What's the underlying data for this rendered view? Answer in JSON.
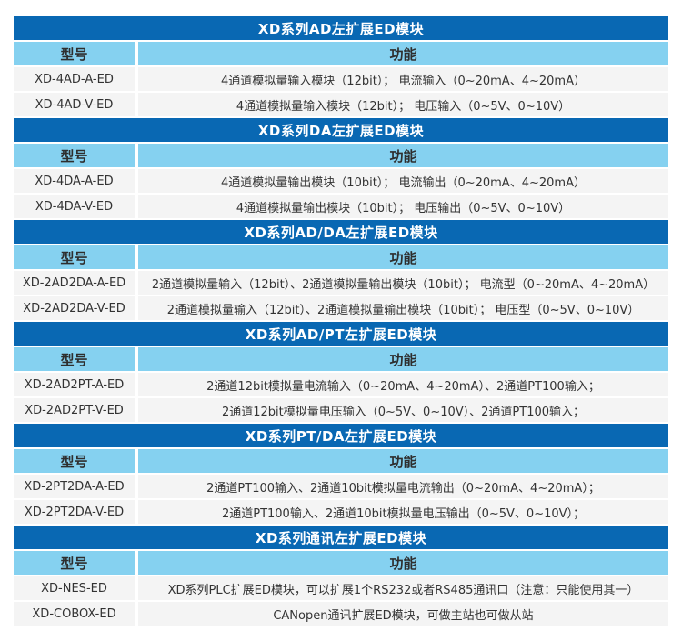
{
  "colors": {
    "dark_blue": "#0968b3",
    "light_blue": "#85d1f0",
    "row_bg": "#f4f4f4",
    "title_text": "#ffffff",
    "body_text": "#333333"
  },
  "table": {
    "col_model": "型号",
    "col_function": "功能",
    "sections": [
      {
        "title": "XD系列AD左扩展ED模块",
        "rows": [
          {
            "model": "XD-4AD-A-ED",
            "function": "4通道模拟量输入模块（12bit）； 电流输入（0~20mA、4~20mA）"
          },
          {
            "model": "XD-4AD-V-ED",
            "function": "4通道模拟量输入模块（12bit）； 电压输入（0~5V、0~10V）"
          }
        ]
      },
      {
        "title": "XD系列DA左扩展ED模块",
        "rows": [
          {
            "model": "XD-4DA-A-ED",
            "function": "4通道模拟量输出模块（10bit）； 电流输出（0~20mA、4~20mA）"
          },
          {
            "model": "XD-4DA-V-ED",
            "function": "4通道模拟量输出模块（10bit）； 电压输出（0~5V、0~10V）"
          }
        ]
      },
      {
        "title": "XD系列AD/DA左扩展ED模块",
        "rows": [
          {
            "model": "XD-2AD2DA-A-ED",
            "function": "2通道模拟量输入（12bit）、2通道模拟量输出模块（10bit）； 电流型（0~20mA、4~20mA）"
          },
          {
            "model": "XD-2AD2DA-V-ED",
            "function": "2通道模拟量输入（12bit）、2通道模拟量输出模块（10bit）； 电压型（0~5V、0~10V）"
          }
        ]
      },
      {
        "title": "XD系列AD/PT左扩展ED模块",
        "rows": [
          {
            "model": "XD-2AD2PT-A-ED",
            "function": "2通道12bit模拟量电流输入（0~20mA、4~20mA）、2通道PT100输入；"
          },
          {
            "model": "XD-2AD2PT-V-ED",
            "function": "2通道12bit模拟量电压输入（0~5V、0~10V）、2通道PT100输入；"
          }
        ]
      },
      {
        "title": "XD系列PT/DA左扩展ED模块",
        "rows": [
          {
            "model": "XD-2PT2DA-A-ED",
            "function": "2通道PT100输入、2通道10bit模拟量电流输出（0~20mA、4~20mA）；"
          },
          {
            "model": "XD-2PT2DA-V-ED",
            "function": "2通道PT100输入、2通道10bit模拟量电压输出（0~5V、0~10V）；"
          }
        ]
      },
      {
        "title": "XD系列通讯左扩展ED模块",
        "rows": [
          {
            "model": "XD-NES-ED",
            "function": "XD系列PLC扩展ED模块，可以扩展1个RS232或者RS485通讯口（注意：只能使用其一）"
          },
          {
            "model": "XD-COBOX-ED",
            "function": "CANopen通讯扩展ED模块，可做主站也可做从站"
          }
        ]
      }
    ]
  }
}
